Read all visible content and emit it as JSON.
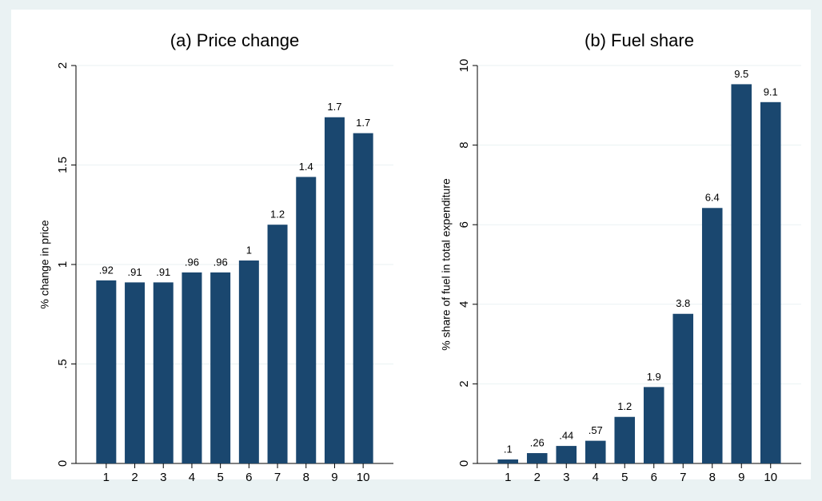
{
  "chart_data": [
    {
      "type": "bar",
      "title": "(a) Price change",
      "ylabel": "% change in price",
      "categories": [
        "1",
        "2",
        "3",
        "4",
        "5",
        "6",
        "7",
        "8",
        "9",
        "10"
      ],
      "values": [
        0.92,
        0.91,
        0.91,
        0.96,
        0.96,
        1.02,
        1.2,
        1.44,
        1.74,
        1.66
      ],
      "value_labels": [
        ".92",
        ".91",
        ".91",
        ".96",
        ".96",
        "1",
        "1.2",
        "1.4",
        "1.7",
        "1.7"
      ],
      "color": "#1a476f",
      "ylim": [
        0,
        2
      ],
      "yticks": [
        0,
        {
          "value": 0.5,
          "label": ".5"
        },
        1,
        1.5,
        2
      ],
      "grid": true
    },
    {
      "type": "bar",
      "title": "(b) Fuel share",
      "ylabel": "% share of fuel in total expenditure",
      "categories": [
        "1",
        "2",
        "3",
        "4",
        "5",
        "6",
        "7",
        "8",
        "9",
        "10"
      ],
      "values": [
        0.1,
        0.26,
        0.44,
        0.57,
        1.17,
        1.92,
        3.76,
        6.42,
        9.53,
        9.08
      ],
      "value_labels": [
        ".1",
        ".26",
        ".44",
        ".57",
        "1.2",
        "1.9",
        "3.8",
        "6.4",
        "9.5",
        "9.1"
      ],
      "color": "#1a476f",
      "ylim": [
        0,
        10
      ],
      "yticks": [
        0,
        2,
        4,
        6,
        8,
        10
      ],
      "grid": true
    }
  ]
}
